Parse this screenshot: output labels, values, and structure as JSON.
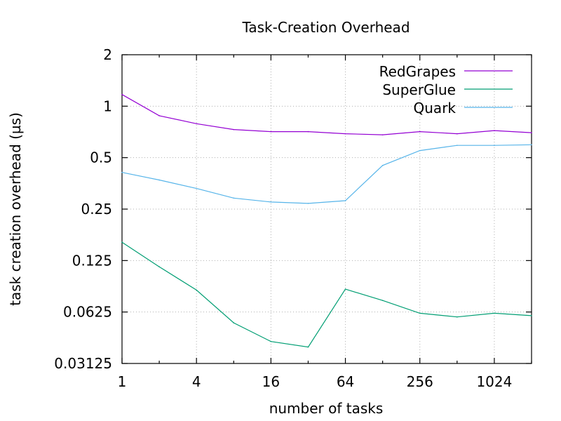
{
  "chart_data": {
    "type": "line",
    "title": "Task-Creation Overhead",
    "xlabel": "number of tasks",
    "ylabel": "task creation overhead (µs)",
    "x_scale": "log2",
    "y_scale": "log2",
    "xlim": [
      1,
      2048
    ],
    "ylim": [
      0.03125,
      2
    ],
    "x_ticks": [
      1,
      4,
      16,
      64,
      256,
      1024
    ],
    "x_tick_labels": [
      "1",
      "4",
      "16",
      "64",
      "256",
      "1024"
    ],
    "y_ticks": [
      0.03125,
      0.0625,
      0.125,
      0.25,
      0.5,
      1,
      2
    ],
    "y_tick_labels": [
      "0.03125",
      "0.0625",
      "0.125",
      "0.25",
      "0.5",
      "1",
      "2"
    ],
    "grid": true,
    "legend_position": "top-right",
    "x": [
      1,
      2,
      4,
      8,
      16,
      32,
      64,
      128,
      256,
      512,
      1024,
      2048
    ],
    "series": [
      {
        "name": "RedGrapes",
        "color": "#9400d3",
        "values": [
          1.17,
          0.88,
          0.79,
          0.73,
          0.71,
          0.71,
          0.69,
          0.68,
          0.71,
          0.69,
          0.72,
          0.7
        ]
      },
      {
        "name": "SuperGlue",
        "color": "#009e73",
        "values": [
          0.16,
          0.115,
          0.084,
          0.054,
          0.042,
          0.039,
          0.085,
          0.073,
          0.0615,
          0.0585,
          0.0615,
          0.0595
        ]
      },
      {
        "name": "Quark",
        "color": "#56b4e9",
        "values": [
          0.41,
          0.37,
          0.33,
          0.29,
          0.275,
          0.27,
          0.28,
          0.45,
          0.55,
          0.59,
          0.59,
          0.595
        ]
      }
    ]
  }
}
